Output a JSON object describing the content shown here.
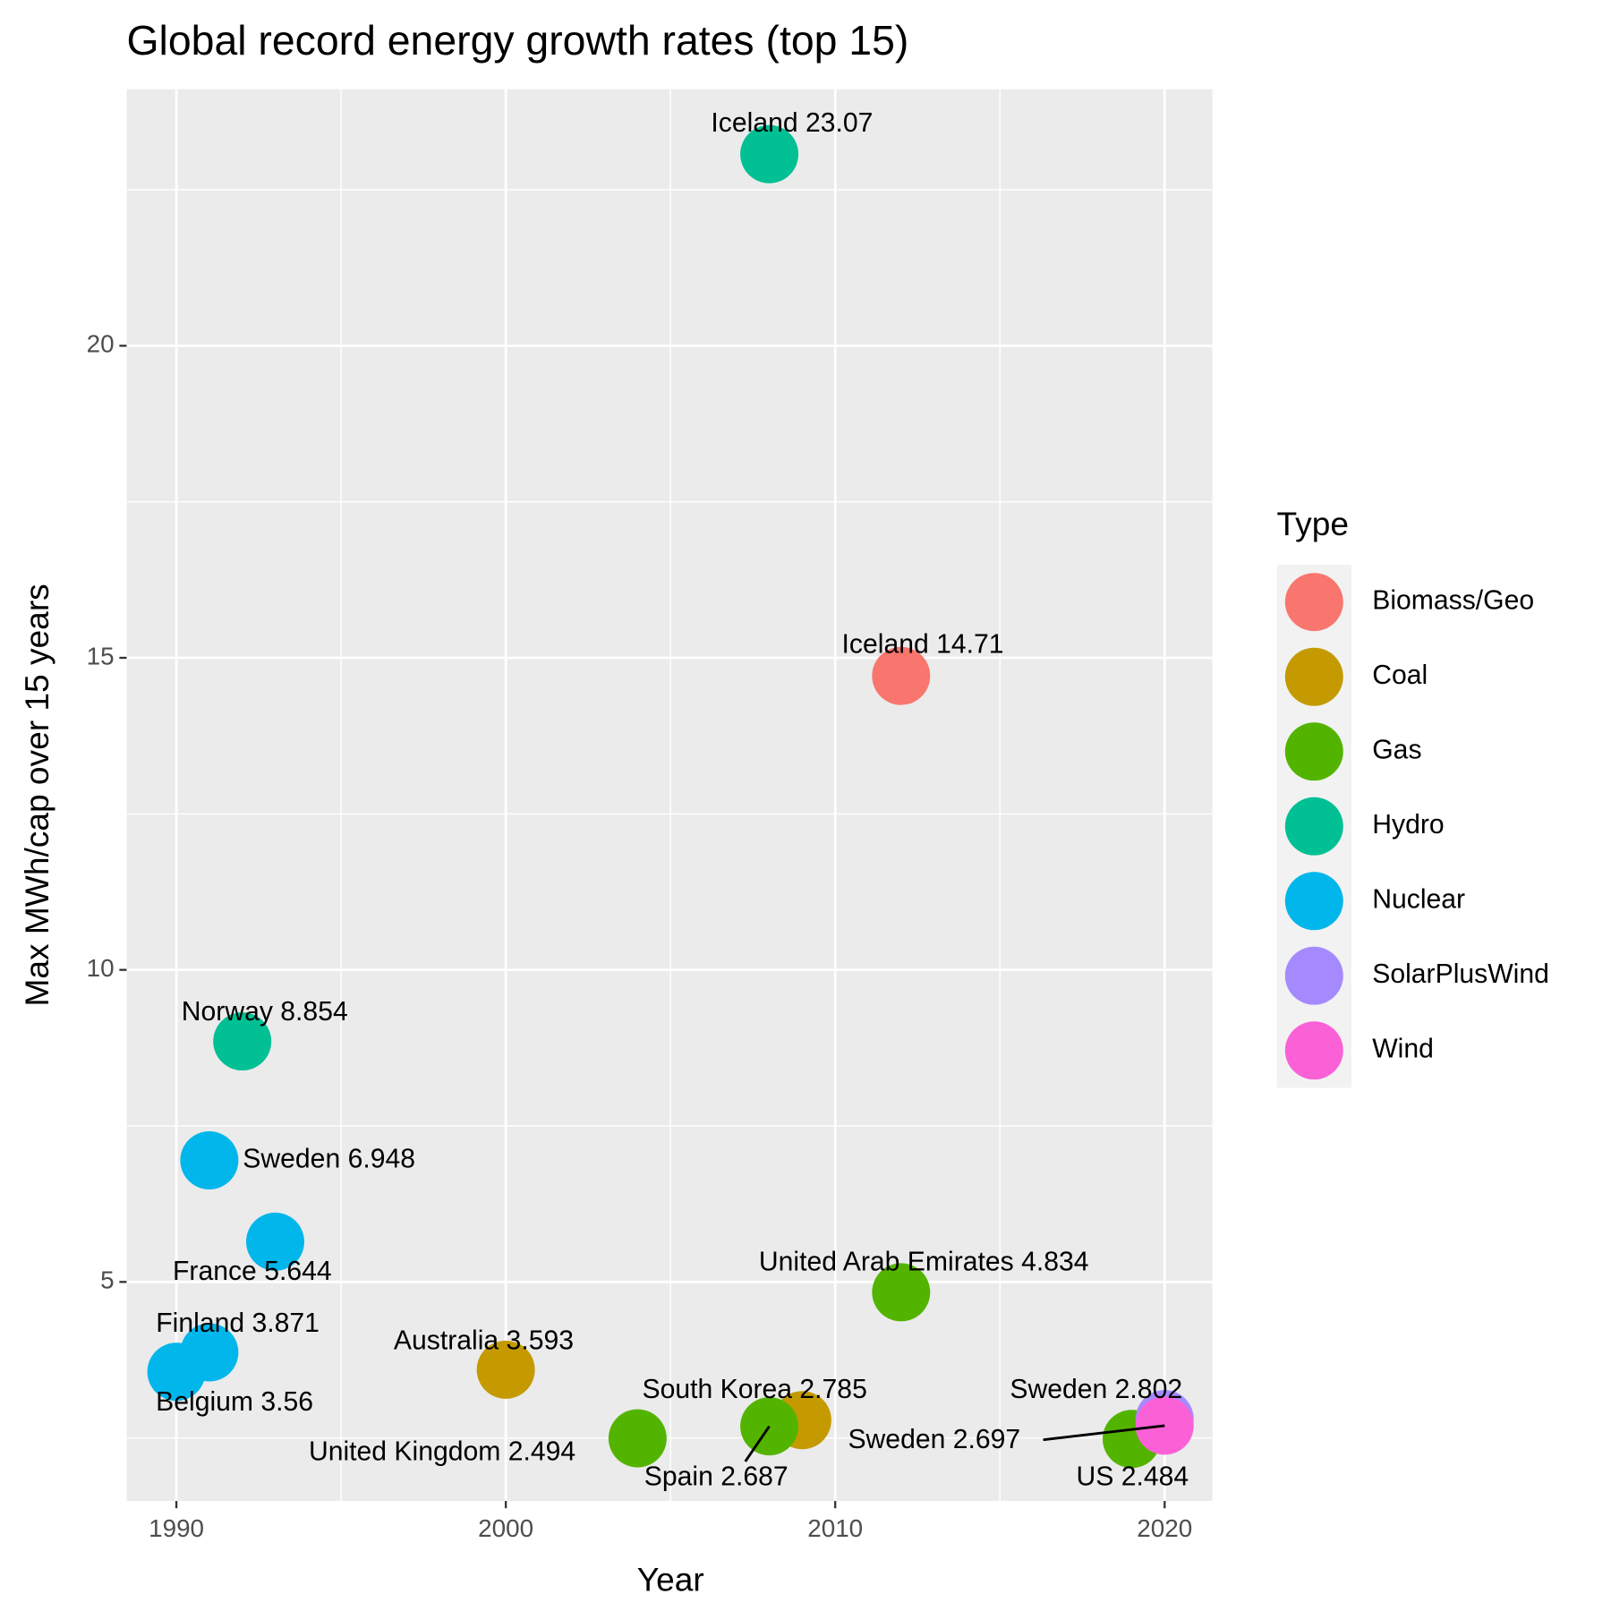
{
  "chart_data": {
    "type": "scatter",
    "title": "Global record energy growth rates (top 15)",
    "x_label": "Year",
    "y_label": "Max MWh/cap over 15 years",
    "legend_title": "Type",
    "legend_position": "right",
    "grid": true,
    "xlim": [
      1988.49,
      2021.45
    ],
    "ylim": [
      1.49,
      24.11
    ],
    "xticks": [
      1990,
      2000,
      2010,
      2020
    ],
    "yticks": [
      5,
      10,
      15,
      20
    ],
    "x_minor_grid": [
      1995,
      2005,
      2015
    ],
    "y_minor_grid": [
      2.5,
      7.5,
      12.5,
      17.5,
      22.5
    ],
    "series": [
      {
        "name": "Biomass/Geo",
        "color": "#F8766D",
        "x": [
          2012
        ],
        "values": [
          14.71
        ],
        "labels": [
          "Iceland 14.71"
        ]
      },
      {
        "name": "Coal",
        "color": "#C49A00",
        "x": [
          2000,
          2009
        ],
        "values": [
          3.593,
          2.785
        ],
        "labels": [
          "Australia 3.593",
          "South Korea 2.785"
        ]
      },
      {
        "name": "Gas",
        "color": "#53B400",
        "x": [
          2004,
          2008,
          2012,
          2019
        ],
        "values": [
          2.494,
          2.687,
          4.834,
          2.484
        ],
        "labels": [
          "United Kingdom 2.494",
          "Spain 2.687",
          "United Arab Emirates 4.834",
          "US 2.484"
        ]
      },
      {
        "name": "Hydro",
        "color": "#00C094",
        "x": [
          2008,
          1992
        ],
        "values": [
          23.07,
          8.854
        ],
        "labels": [
          "Iceland 23.07",
          "Norway 8.854"
        ]
      },
      {
        "name": "Nuclear",
        "color": "#00B6EB",
        "x": [
          1990,
          1991,
          1993,
          1991
        ],
        "values": [
          3.56,
          3.871,
          5.644,
          6.948
        ],
        "labels": [
          "Belgium 3.56",
          "Finland 3.871",
          "France 5.644",
          "Sweden 6.948"
        ]
      },
      {
        "name": "SolarPlusWind",
        "color": "#A58AFF",
        "x": [
          2020
        ],
        "values": [
          2.802
        ],
        "labels": [
          "Sweden 2.802"
        ]
      },
      {
        "name": "Wind",
        "color": "#FB61D7",
        "x": [
          2020
        ],
        "values": [
          2.697
        ],
        "labels": [
          "Sweden 2.697"
        ]
      }
    ]
  }
}
